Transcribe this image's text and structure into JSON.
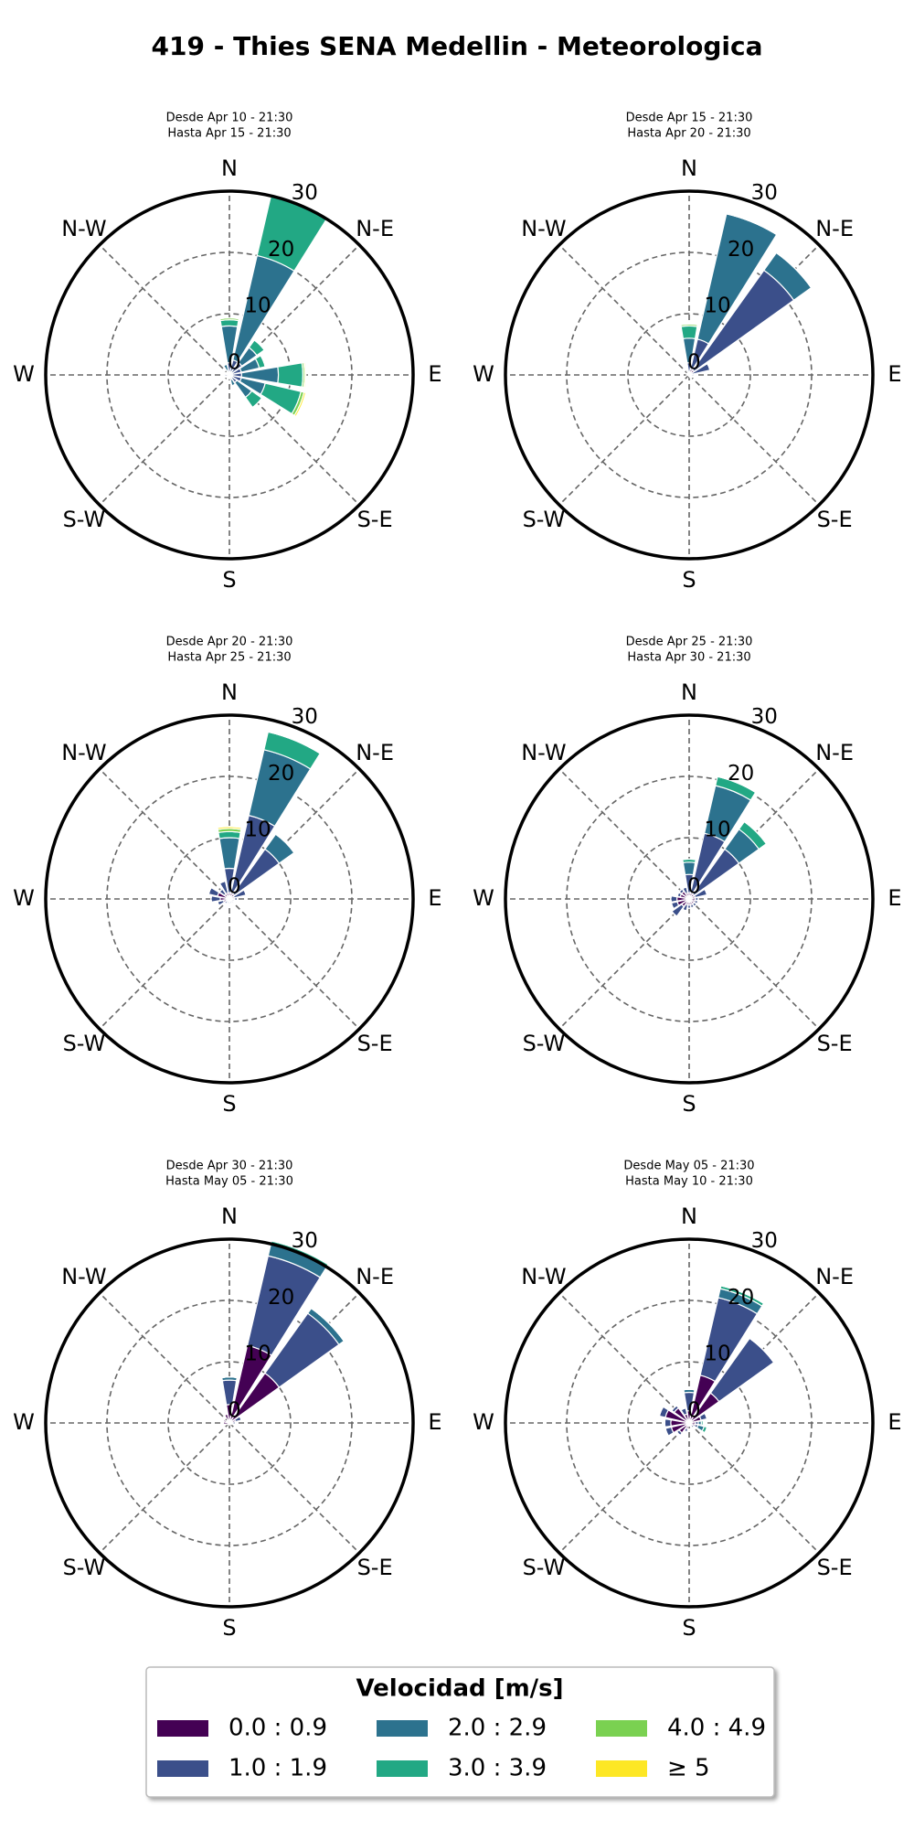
{
  "title": "419 - Thies SENA Medellin - Meteorologica",
  "legend_title": "Velocidad [m/s]",
  "chart_data": [
    {
      "type": "windrose",
      "subtitle": [
        "Desde Apr 10 - 21:30",
        "Hasta Apr 15 - 21:30"
      ],
      "categories": [
        "N",
        null,
        "N-E",
        null,
        "E",
        null,
        "S-E",
        null,
        "S",
        null,
        "S-W",
        null,
        "W",
        null,
        "N-W",
        null
      ],
      "rlim": [
        0,
        30
      ],
      "rticks": [
        0,
        10,
        20,
        30
      ],
      "grid": true,
      "series": [
        {
          "name": "0.0 : 0.9",
          "color": "#440154",
          "values": [
            0.5,
            0.5,
            0.5,
            0.5,
            0.5,
            0.5,
            0.5,
            0.3,
            0.3,
            0.3,
            0.3,
            0.3,
            0.3,
            0.3,
            0.3,
            0.3
          ]
        },
        {
          "name": "1.0 : 1.9",
          "color": "#3b4f8a",
          "values": [
            1.5,
            2,
            2,
            1.5,
            1.5,
            1.5,
            1,
            0.5,
            0.3,
            0.3,
            0.3,
            0.3,
            0.5,
            0.3,
            0.3,
            0.5
          ]
        },
        {
          "name": "2.0 : 2.9",
          "color": "#2c728e",
          "values": [
            6,
            17.5,
            3,
            3,
            6,
            4,
            3,
            1,
            0,
            0,
            0,
            0,
            0,
            0,
            0,
            1
          ]
        },
        {
          "name": "3.0 : 3.9",
          "color": "#22a884",
          "values": [
            1,
            10,
            1.5,
            1,
            4,
            6,
            2,
            0,
            0,
            0,
            0,
            0,
            0,
            0,
            0,
            0
          ]
        },
        {
          "name": "4.0 : 4.9",
          "color": "#7ad151",
          "values": [
            0.3,
            0,
            0,
            0,
            0.3,
            0.5,
            0,
            0,
            0,
            0,
            0,
            0,
            0,
            0,
            0,
            0
          ]
        },
        {
          "name": "≥ 5",
          "color": "#fde725",
          "values": [
            0,
            0,
            0,
            0,
            0.2,
            0.3,
            0,
            0,
            0,
            0,
            0,
            0,
            0,
            0,
            0,
            0
          ]
        }
      ]
    },
    {
      "type": "windrose",
      "subtitle": [
        "Desde Apr 15 - 21:30",
        "Hasta Apr 20 - 21:30"
      ],
      "categories": [
        "N",
        null,
        "N-E",
        null,
        "E",
        null,
        "S-E",
        null,
        "S",
        null,
        "S-W",
        null,
        "W",
        null,
        "N-W",
        null
      ],
      "rlim": [
        0,
        30
      ],
      "rticks": [
        0,
        10,
        20,
        30
      ],
      "grid": true,
      "series": [
        {
          "name": "0.0 : 0.9",
          "color": "#440154",
          "values": [
            0.5,
            1,
            1,
            0.5,
            0.3,
            0.3,
            0.3,
            0.2,
            0.2,
            0.2,
            0.2,
            0.2,
            0.2,
            0.2,
            0.2,
            0.3
          ]
        },
        {
          "name": "1.0 : 1.9",
          "color": "#3b4f8a",
          "values": [
            1.5,
            5,
            20,
            3,
            0.5,
            0.3,
            0.3,
            0.2,
            0,
            0,
            0,
            0,
            0.2,
            0.2,
            0.2,
            0.5
          ]
        },
        {
          "name": "2.0 : 2.9",
          "color": "#2c728e",
          "values": [
            4,
            21,
            3.5,
            0,
            0,
            0,
            0,
            0,
            0,
            0,
            0,
            0,
            0,
            0,
            0,
            0
          ]
        },
        {
          "name": "3.0 : 3.9",
          "color": "#22a884",
          "values": [
            2,
            0,
            0,
            0,
            0,
            0,
            0,
            0,
            0,
            0,
            0,
            0,
            0,
            0,
            0,
            0
          ]
        },
        {
          "name": "4.0 : 4.9",
          "color": "#7ad151",
          "values": [
            0.3,
            0,
            0,
            0,
            0,
            0,
            0,
            0,
            0,
            0,
            0,
            0,
            0,
            0,
            0,
            0
          ]
        },
        {
          "name": "≥ 5",
          "color": "#fde725",
          "values": [
            0,
            0,
            0,
            0,
            0,
            0,
            0,
            0,
            0,
            0,
            0,
            0,
            0,
            0,
            0,
            0
          ]
        }
      ]
    },
    {
      "type": "windrose",
      "subtitle": [
        "Desde Apr 20 - 21:30",
        "Hasta Apr 25 - 21:30"
      ],
      "categories": [
        "N",
        null,
        "N-E",
        null,
        "E",
        null,
        "S-E",
        null,
        "S",
        null,
        "S-W",
        null,
        "W",
        null,
        "N-W",
        null
      ],
      "rlim": [
        0,
        30
      ],
      "rticks": [
        0,
        10,
        20,
        30
      ],
      "grid": true,
      "series": [
        {
          "name": "0.0 : 0.9",
          "color": "#440154",
          "values": [
            1,
            1,
            1,
            0.8,
            0.8,
            0.5,
            0.5,
            0.5,
            0.5,
            0.5,
            0.5,
            1,
            1.5,
            2,
            1,
            1
          ]
        },
        {
          "name": "1.0 : 1.9",
          "color": "#3b4f8a",
          "values": [
            4,
            13,
            9,
            2,
            0.5,
            0.3,
            0.3,
            0.3,
            0.3,
            0.3,
            0.5,
            1,
            1.5,
            1.5,
            1,
            2
          ]
        },
        {
          "name": "2.0 : 2.9",
          "color": "#2c728e",
          "values": [
            5,
            11,
            3,
            0,
            0,
            0,
            0,
            0,
            0,
            0,
            0,
            0,
            0,
            0,
            0,
            0
          ]
        },
        {
          "name": "3.0 : 3.9",
          "color": "#22a884",
          "values": [
            1,
            3,
            0,
            0,
            0,
            0,
            0,
            0,
            0,
            0,
            0,
            0,
            0,
            0,
            0,
            0
          ]
        },
        {
          "name": "4.0 : 4.9",
          "color": "#7ad151",
          "values": [
            0.5,
            0,
            0,
            0,
            0,
            0,
            0,
            0,
            0,
            0,
            0,
            0,
            0,
            0,
            0,
            0
          ]
        },
        {
          "name": "≥ 5",
          "color": "#fde725",
          "values": [
            0.3,
            0,
            0,
            0,
            0,
            0,
            0,
            0,
            0,
            0,
            0,
            0,
            0,
            0,
            0,
            0
          ]
        }
      ]
    },
    {
      "type": "windrose",
      "subtitle": [
        "Desde Apr 25 - 21:30",
        "Hasta Apr 30 - 21:30"
      ],
      "categories": [
        "N",
        null,
        "N-E",
        null,
        "E",
        null,
        "S-E",
        null,
        "S",
        null,
        "S-W",
        null,
        "W",
        null,
        "N-W",
        null
      ],
      "rlim": [
        0,
        30
      ],
      "rticks": [
        0,
        10,
        20,
        30
      ],
      "grid": true,
      "series": [
        {
          "name": "0.0 : 0.9",
          "color": "#440154",
          "values": [
            1,
            1,
            1,
            1,
            1,
            1,
            1,
            1,
            1,
            1,
            1.5,
            2,
            2,
            1.5,
            1.5,
            1
          ]
        },
        {
          "name": "1.0 : 1.9",
          "color": "#3b4f8a",
          "values": [
            3,
            10,
            9,
            2,
            0.5,
            0.5,
            0.5,
            0.5,
            0.5,
            1,
            2,
            1,
            1,
            0.5,
            0.5,
            1
          ]
        },
        {
          "name": "2.0 : 2.9",
          "color": "#2c728e",
          "values": [
            2,
            8,
            4,
            0,
            0,
            0,
            0,
            0,
            0,
            0,
            0,
            0,
            0,
            0,
            0,
            0
          ]
        },
        {
          "name": "3.0 : 3.9",
          "color": "#22a884",
          "values": [
            0.5,
            1.5,
            1.5,
            0,
            0,
            0,
            0,
            0,
            0,
            0,
            0,
            0,
            0,
            0,
            0,
            0
          ]
        },
        {
          "name": "4.0 : 4.9",
          "color": "#7ad151",
          "values": [
            0,
            0,
            0,
            0,
            0,
            0,
            0,
            0,
            0,
            0,
            0,
            0,
            0,
            0,
            0,
            0
          ]
        },
        {
          "name": "≥ 5",
          "color": "#fde725",
          "values": [
            0,
            0,
            0,
            0,
            0,
            0,
            0,
            0,
            0,
            0,
            0,
            0,
            0,
            0,
            0,
            0
          ]
        }
      ]
    },
    {
      "type": "windrose",
      "subtitle": [
        "Desde Apr 30 - 21:30",
        "Hasta May 05 - 21:30"
      ],
      "categories": [
        "N",
        null,
        "N-E",
        null,
        "E",
        null,
        "S-E",
        null,
        "S",
        null,
        "S-W",
        null,
        "W",
        null,
        "N-W",
        null
      ],
      "rlim": [
        0,
        30
      ],
      "rticks": [
        0,
        10,
        20,
        30
      ],
      "grid": true,
      "series": [
        {
          "name": "0.0 : 0.9",
          "color": "#440154",
          "values": [
            3,
            13,
            10,
            1,
            0.5,
            0.5,
            0.3,
            0.3,
            0.3,
            0.3,
            0.3,
            0.5,
            1,
            1,
            0.5,
            1.5
          ]
        },
        {
          "name": "1.0 : 1.9",
          "color": "#3b4f8a",
          "values": [
            4,
            15,
            12,
            1,
            0.5,
            0,
            0,
            0,
            0,
            0,
            0,
            0,
            0,
            0,
            0,
            0
          ]
        },
        {
          "name": "2.0 : 2.9",
          "color": "#2c728e",
          "values": [
            0.5,
            2,
            1,
            0,
            0,
            0,
            0,
            0,
            0,
            0,
            0,
            0,
            0,
            0,
            0,
            0
          ]
        },
        {
          "name": "3.0 : 3.9",
          "color": "#22a884",
          "values": [
            0,
            0.5,
            0,
            0,
            0,
            0,
            0,
            0,
            0,
            0,
            0,
            0,
            0,
            0,
            0,
            0
          ]
        },
        {
          "name": "4.0 : 4.9",
          "color": "#7ad151",
          "values": [
            0,
            0,
            0,
            0,
            0,
            0,
            0,
            0,
            0,
            0,
            0,
            0,
            0,
            0,
            0,
            0
          ]
        },
        {
          "name": "≥ 5",
          "color": "#fde725",
          "values": [
            0,
            0,
            0,
            0,
            0,
            0,
            0,
            0,
            0,
            0,
            0,
            0,
            0,
            0,
            0,
            0
          ]
        }
      ]
    },
    {
      "type": "windrose",
      "subtitle": [
        "Desde May 05 - 21:30",
        "Hasta May 10 - 21:30"
      ],
      "categories": [
        "N",
        null,
        "N-E",
        null,
        "E",
        null,
        "S-E",
        null,
        "S",
        null,
        "S-W",
        null,
        "W",
        null,
        "N-W",
        null
      ],
      "rlim": [
        0,
        30
      ],
      "rticks": [
        0,
        10,
        20,
        30
      ],
      "grid": true,
      "series": [
        {
          "name": "0.0 : 0.9",
          "color": "#440154",
          "values": [
            2,
            8,
            6,
            2,
            1,
            1,
            0.5,
            0.5,
            0.5,
            1,
            2,
            3,
            3,
            4,
            3,
            1.5
          ]
        },
        {
          "name": "1.0 : 1.9",
          "color": "#3b4f8a",
          "values": [
            3,
            13,
            11,
            1,
            0.5,
            0.5,
            0.5,
            0,
            0,
            0.5,
            0.5,
            1,
            1,
            1,
            0.5,
            1
          ]
        },
        {
          "name": "2.0 : 2.9",
          "color": "#2c728e",
          "values": [
            0.5,
            1.5,
            0,
            0,
            0.5,
            1,
            0,
            0,
            0,
            0,
            0,
            0,
            0,
            0,
            0,
            0
          ]
        },
        {
          "name": "3.0 : 3.9",
          "color": "#22a884",
          "values": [
            0,
            0.5,
            0,
            0,
            0.3,
            0.5,
            0,
            0,
            0,
            0,
            0,
            0,
            0,
            0,
            0,
            0
          ]
        },
        {
          "name": "4.0 : 4.9",
          "color": "#7ad151",
          "values": [
            0,
            0,
            0,
            0,
            0,
            0,
            0,
            0,
            0,
            0,
            0,
            0,
            0,
            0,
            0,
            0
          ]
        },
        {
          "name": "≥ 5",
          "color": "#fde725",
          "values": [
            0,
            0,
            0,
            0,
            0,
            0,
            0,
            0,
            0,
            0,
            0,
            0,
            0,
            0,
            0,
            0
          ]
        }
      ]
    }
  ]
}
